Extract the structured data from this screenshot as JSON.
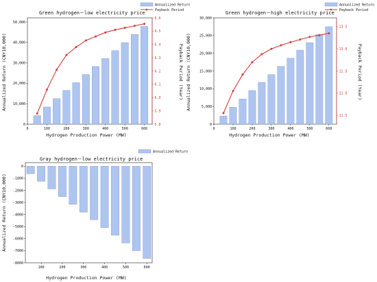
{
  "chart_data": [
    {
      "type": "bar",
      "title": "Green hydrogen－low electricity price",
      "xlabel": "Hydrogen Production Power (MW)",
      "ylabel": "Annualized Return (CNY10,000)",
      "y2label": "Payback Period (Year)",
      "categories": [
        50,
        100,
        150,
        200,
        250,
        300,
        350,
        400,
        450,
        500,
        550,
        600
      ],
      "x_ticks": [
        0,
        100,
        200,
        300,
        400,
        500,
        600
      ],
      "ylim": [
        0,
        52000
      ],
      "y_ticks": [
        0,
        10000,
        20000,
        30000,
        40000,
        50000
      ],
      "y_tick_labels": [
        "0",
        "10,000",
        "20,000",
        "30,000",
        "40,000",
        "50,000"
      ],
      "y2lim": [
        5.8,
        6.6
      ],
      "y2_ticks": [
        5.8,
        5.9,
        6.0,
        6.1,
        6.2,
        6.3,
        6.4,
        6.5,
        6.6
      ],
      "series": [
        {
          "name": "Annualized Return",
          "kind": "bar",
          "color": "#aec5ef",
          "values": [
            4200,
            8400,
            12500,
            16500,
            20300,
            24300,
            28200,
            32100,
            36000,
            39900,
            43900,
            47800
          ]
        },
        {
          "name": "Payback Period",
          "kind": "line",
          "color": "#d63a3a",
          "axis": "right",
          "values": [
            5.88,
            6.06,
            6.21,
            6.32,
            6.38,
            6.43,
            6.46,
            6.49,
            6.51,
            6.525,
            6.54,
            6.555
          ]
        }
      ],
      "legend": "top-right"
    },
    {
      "type": "bar",
      "title": "Green hydrogen－high electricity price",
      "xlabel": "Hydrogen Production Power (MW)",
      "ylabel": "Annualized Return (CNY10,000)",
      "y2label": "Payback Period (Year)",
      "categories": [
        50,
        100,
        150,
        200,
        250,
        300,
        350,
        400,
        450,
        500,
        550,
        600
      ],
      "x_ticks": [
        0,
        100,
        200,
        300,
        400,
        500,
        600
      ],
      "ylim": [
        0,
        30000
      ],
      "y_ticks": [
        0,
        5000,
        10000,
        15000,
        20000,
        25000,
        30000
      ],
      "y_tick_labels": [
        "0",
        "5,000",
        "10,000",
        "15,000",
        "20,000",
        "25,000",
        "30,000"
      ],
      "y2lim": [
        11.3,
        13.7
      ],
      "y2_ticks": [
        11.5,
        12.0,
        12.5,
        13.0,
        13.5
      ],
      "series": [
        {
          "name": "Annualized Return",
          "kind": "bar",
          "color": "#aec5ef",
          "values": [
            2300,
            4800,
            7100,
            9500,
            11800,
            14000,
            16300,
            18600,
            20900,
            23000,
            25300,
            27500
          ]
        },
        {
          "name": "Payback Period",
          "kind": "line",
          "color": "#d63a3a",
          "axis": "right",
          "values": [
            11.55,
            12.05,
            12.42,
            12.7,
            12.88,
            13.0,
            13.08,
            13.15,
            13.21,
            13.27,
            13.31,
            13.35
          ]
        }
      ],
      "legend": "top-right"
    },
    {
      "type": "bar",
      "title": "Gray hydrogen－low electricity price",
      "xlabel": "Hydrogen Production Power (MW)",
      "ylabel": "Annualized Return (CNY10,000)",
      "categories": [
        50,
        100,
        150,
        200,
        250,
        300,
        350,
        400,
        450,
        500,
        550,
        600
      ],
      "x_ticks": [
        100,
        200,
        300,
        400,
        500,
        600
      ],
      "ylim": [
        -8000,
        300
      ],
      "y_ticks": [
        0,
        -1000,
        -2000,
        -3000,
        -4000,
        -5000,
        -6000,
        -7000,
        -8000
      ],
      "y_tick_labels": [
        "0",
        "-1000",
        "-2000",
        "-3000",
        "-4000",
        "-5000",
        "-6000",
        "-7000",
        "-8000"
      ],
      "series": [
        {
          "name": "Annualized Return",
          "kind": "bar",
          "color": "#aec5ef",
          "values": [
            -620,
            -1250,
            -1880,
            -2520,
            -3160,
            -3800,
            -4430,
            -5080,
            -5720,
            -6360,
            -7000,
            -7640
          ]
        }
      ],
      "legend": "top-right"
    }
  ]
}
